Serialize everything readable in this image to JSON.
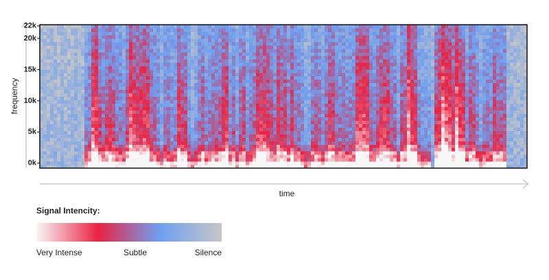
{
  "chart_data": {
    "type": "spectrogram",
    "y_label": "frequency",
    "x_label": "time",
    "ylim": [
      -800,
      22200
    ],
    "yticks": [
      {
        "value": 0,
        "label": "0k"
      },
      {
        "value": 5000,
        "label": "5k"
      },
      {
        "value": 10000,
        "label": "10k"
      },
      {
        "value": 15000,
        "label": "15k"
      },
      {
        "value": 20000,
        "label": "20k"
      },
      {
        "value": 22000,
        "label": "22k"
      }
    ],
    "colorscale": [
      "#f7f7f7",
      "#ea2342",
      "#6e9ff0",
      "#c6c6c6"
    ],
    "legend": {
      "title": "Signal Intencity:",
      "labels": [
        "Very Intense",
        "Subtle",
        "Silence"
      ]
    }
  }
}
